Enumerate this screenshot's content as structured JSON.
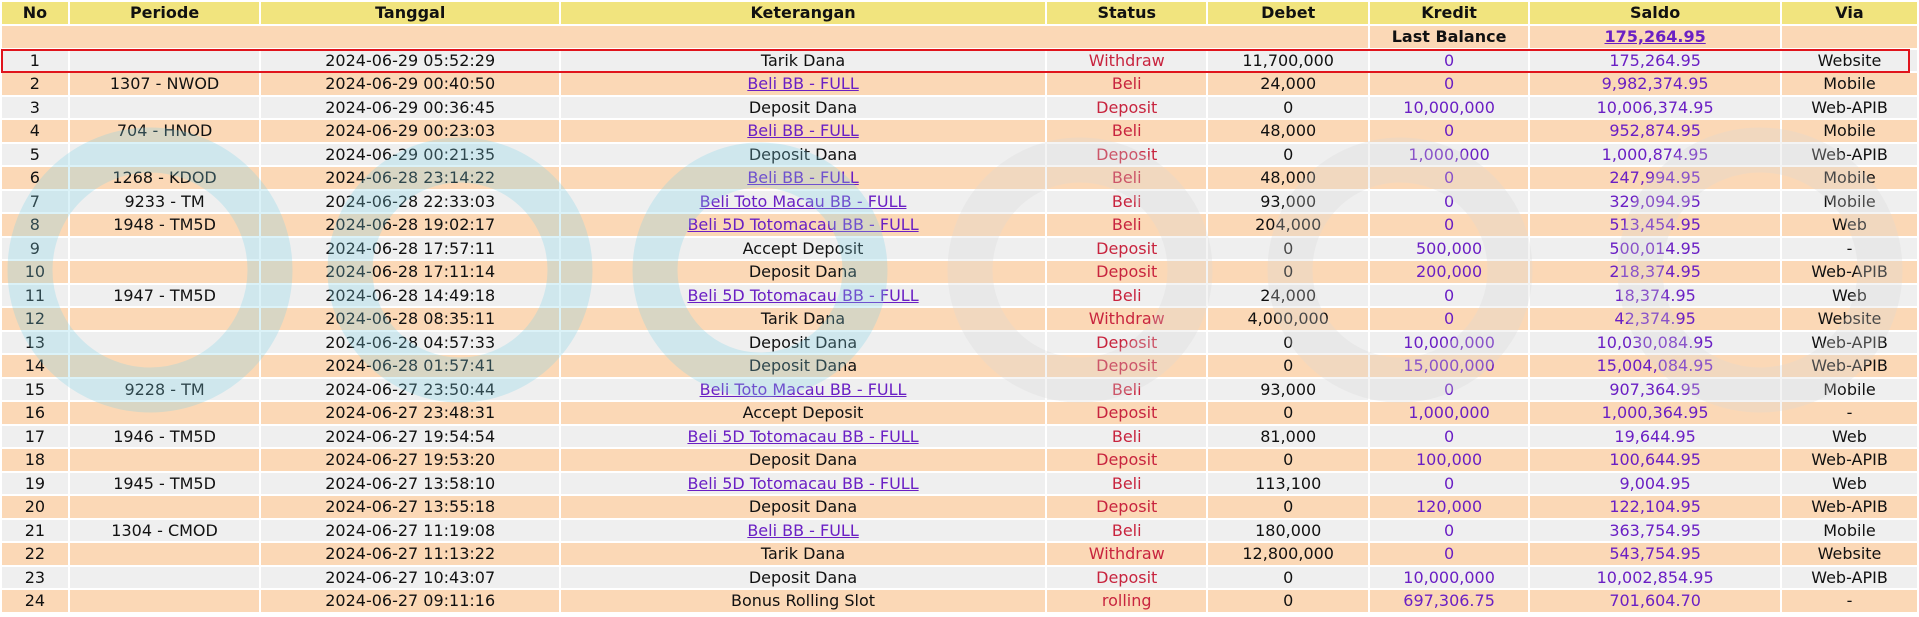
{
  "columns": [
    "No",
    "Periode",
    "Tanggal",
    "Keterangan",
    "Status",
    "Debet",
    "Kredit",
    "Saldo",
    "Via"
  ],
  "last_balance": {
    "label": "Last Balance",
    "value": "175,264.95"
  },
  "rows": [
    {
      "no": "1",
      "periode": "",
      "tanggal": "2024-06-29 05:52:29",
      "keterangan": "Tarik Dana",
      "link": false,
      "status": "Withdraw",
      "debet": "11,700,000",
      "kredit": "0",
      "saldo": "175,264.95",
      "via": "Website"
    },
    {
      "no": "2",
      "periode": "1307 - NWOD",
      "tanggal": "2024-06-29 00:40:50",
      "keterangan": "Beli BB - FULL",
      "link": true,
      "status": "Beli",
      "debet": "24,000",
      "kredit": "0",
      "saldo": "9,982,374.95",
      "via": "Mobile"
    },
    {
      "no": "3",
      "periode": "",
      "tanggal": "2024-06-29 00:36:45",
      "keterangan": "Deposit Dana",
      "link": false,
      "status": "Deposit",
      "debet": "0",
      "kredit": "10,000,000",
      "saldo": "10,006,374.95",
      "via": "Web-APIB"
    },
    {
      "no": "4",
      "periode": "704 - HNOD",
      "tanggal": "2024-06-29 00:23:03",
      "keterangan": "Beli BB - FULL",
      "link": true,
      "status": "Beli",
      "debet": "48,000",
      "kredit": "0",
      "saldo": "952,874.95",
      "via": "Mobile"
    },
    {
      "no": "5",
      "periode": "",
      "tanggal": "2024-06-29 00:21:35",
      "keterangan": "Deposit Dana",
      "link": false,
      "status": "Deposit",
      "debet": "0",
      "kredit": "1,000,000",
      "saldo": "1,000,874.95",
      "via": "Web-APIB"
    },
    {
      "no": "6",
      "periode": "1268 - KDOD",
      "tanggal": "2024-06-28 23:14:22",
      "keterangan": "Beli BB - FULL",
      "link": true,
      "status": "Beli",
      "debet": "48,000",
      "kredit": "0",
      "saldo": "247,994.95",
      "via": "Mobile"
    },
    {
      "no": "7",
      "periode": "9233 - TM",
      "tanggal": "2024-06-28 22:33:03",
      "keterangan": "Beli Toto Macau BB - FULL",
      "link": true,
      "status": "Beli",
      "debet": "93,000",
      "kredit": "0",
      "saldo": "329,094.95",
      "via": "Mobile"
    },
    {
      "no": "8",
      "periode": "1948 - TM5D",
      "tanggal": "2024-06-28 19:02:17",
      "keterangan": "Beli 5D Totomacau BB - FULL",
      "link": true,
      "status": "Beli",
      "debet": "204,000",
      "kredit": "0",
      "saldo": "513,454.95",
      "via": "Web"
    },
    {
      "no": "9",
      "periode": "",
      "tanggal": "2024-06-28 17:57:11",
      "keterangan": "Accept Deposit",
      "link": false,
      "status": "Deposit",
      "debet": "0",
      "kredit": "500,000",
      "saldo": "500,014.95",
      "via": "-"
    },
    {
      "no": "10",
      "periode": "",
      "tanggal": "2024-06-28 17:11:14",
      "keterangan": "Deposit Dana",
      "link": false,
      "status": "Deposit",
      "debet": "0",
      "kredit": "200,000",
      "saldo": "218,374.95",
      "via": "Web-APIB"
    },
    {
      "no": "11",
      "periode": "1947 - TM5D",
      "tanggal": "2024-06-28 14:49:18",
      "keterangan": "Beli 5D Totomacau BB - FULL",
      "link": true,
      "status": "Beli",
      "debet": "24,000",
      "kredit": "0",
      "saldo": "18,374.95",
      "via": "Web"
    },
    {
      "no": "12",
      "periode": "",
      "tanggal": "2024-06-28 08:35:11",
      "keterangan": "Tarik Dana",
      "link": false,
      "status": "Withdraw",
      "debet": "4,000,000",
      "kredit": "0",
      "saldo": "42,374.95",
      "via": "Website"
    },
    {
      "no": "13",
      "periode": "",
      "tanggal": "2024-06-28 04:57:33",
      "keterangan": "Deposit Dana",
      "link": false,
      "status": "Deposit",
      "debet": "0",
      "kredit": "10,000,000",
      "saldo": "10,030,084.95",
      "via": "Web-APIB"
    },
    {
      "no": "14",
      "periode": "",
      "tanggal": "2024-06-28 01:57:41",
      "keterangan": "Deposit Dana",
      "link": false,
      "status": "Deposit",
      "debet": "0",
      "kredit": "15,000,000",
      "saldo": "15,004,084.95",
      "via": "Web-APIB"
    },
    {
      "no": "15",
      "periode": "9228 - TM",
      "tanggal": "2024-06-27 23:50:44",
      "keterangan": "Beli Toto Macau BB - FULL",
      "link": true,
      "status": "Beli",
      "debet": "93,000",
      "kredit": "0",
      "saldo": "907,364.95",
      "via": "Mobile"
    },
    {
      "no": "16",
      "periode": "",
      "tanggal": "2024-06-27 23:48:31",
      "keterangan": "Accept Deposit",
      "link": false,
      "status": "Deposit",
      "debet": "0",
      "kredit": "1,000,000",
      "saldo": "1,000,364.95",
      "via": "-"
    },
    {
      "no": "17",
      "periode": "1946 - TM5D",
      "tanggal": "2024-06-27 19:54:54",
      "keterangan": "Beli 5D Totomacau BB - FULL",
      "link": true,
      "status": "Beli",
      "debet": "81,000",
      "kredit": "0",
      "saldo": "19,644.95",
      "via": "Web"
    },
    {
      "no": "18",
      "periode": "",
      "tanggal": "2024-06-27 19:53:20",
      "keterangan": "Deposit Dana",
      "link": false,
      "status": "Deposit",
      "debet": "0",
      "kredit": "100,000",
      "saldo": "100,644.95",
      "via": "Web-APIB"
    },
    {
      "no": "19",
      "periode": "1945 - TM5D",
      "tanggal": "2024-06-27 13:58:10",
      "keterangan": "Beli 5D Totomacau BB - FULL",
      "link": true,
      "status": "Beli",
      "debet": "113,100",
      "kredit": "0",
      "saldo": "9,004.95",
      "via": "Web"
    },
    {
      "no": "20",
      "periode": "",
      "tanggal": "2024-06-27 13:55:18",
      "keterangan": "Deposit Dana",
      "link": false,
      "status": "Deposit",
      "debet": "0",
      "kredit": "120,000",
      "saldo": "122,104.95",
      "via": "Web-APIB"
    },
    {
      "no": "21",
      "periode": "1304 - CMOD",
      "tanggal": "2024-06-27 11:19:08",
      "keterangan": "Beli BB - FULL",
      "link": true,
      "status": "Beli",
      "debet": "180,000",
      "kredit": "0",
      "saldo": "363,754.95",
      "via": "Mobile"
    },
    {
      "no": "22",
      "periode": "",
      "tanggal": "2024-06-27 11:13:22",
      "keterangan": "Tarik Dana",
      "link": false,
      "status": "Withdraw",
      "debet": "12,800,000",
      "kredit": "0",
      "saldo": "543,754.95",
      "via": "Website"
    },
    {
      "no": "23",
      "periode": "",
      "tanggal": "2024-06-27 10:43:07",
      "keterangan": "Deposit Dana",
      "link": false,
      "status": "Deposit",
      "debet": "0",
      "kredit": "10,000,000",
      "saldo": "10,002,854.95",
      "via": "Web-APIB"
    },
    {
      "no": "24",
      "periode": "",
      "tanggal": "2024-06-27 09:11:16",
      "keterangan": "Bonus Rolling Slot",
      "link": false,
      "status": "rolling",
      "debet": "0",
      "kredit": "697,306.75",
      "saldo": "701,604.70",
      "via": "-"
    }
  ],
  "colors": {
    "header": "#f1e47e",
    "row_odd": "#efefef",
    "row_even": "#fbd8b6",
    "status": "#c8243e",
    "link": "#6a1fc4",
    "highlight": "#e0141c"
  }
}
